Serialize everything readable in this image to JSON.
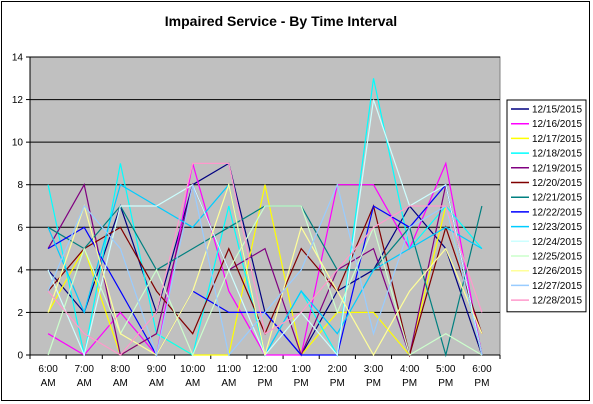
{
  "chart_data": {
    "type": "line",
    "title": "Impaired Service - By Time Interval",
    "xlabel": "",
    "ylabel": "",
    "ylim": [
      0,
      14
    ],
    "yticks": [
      0,
      2,
      4,
      6,
      8,
      10,
      12,
      14
    ],
    "grid": true,
    "legend_position": "right",
    "plot_background": "#c0c0c0",
    "categories": [
      [
        "6:00",
        "AM"
      ],
      [
        "7:00",
        "AM"
      ],
      [
        "8:00",
        "AM"
      ],
      [
        "9:00",
        "AM"
      ],
      [
        "10:00",
        "AM"
      ],
      [
        "11:00",
        "AM"
      ],
      [
        "12:00",
        "PM"
      ],
      [
        "1:00",
        "PM"
      ],
      [
        "2:00",
        "PM"
      ],
      [
        "3:00",
        "PM"
      ],
      [
        "4:00",
        "PM"
      ],
      [
        "5:00",
        "PM"
      ],
      [
        "6:00",
        "PM"
      ]
    ],
    "series": [
      {
        "name": "12/15/2015",
        "color": "#000080",
        "values": [
          4,
          2,
          7,
          2,
          8,
          9,
          2,
          0,
          3,
          4,
          7,
          5,
          0
        ]
      },
      {
        "name": "12/16/2015",
        "color": "#ff00ff",
        "values": [
          1,
          0,
          2,
          0,
          9,
          3,
          0,
          0,
          8,
          8,
          5,
          9,
          0
        ]
      },
      {
        "name": "12/17/2015",
        "color": "#ffff00",
        "values": [
          2,
          5,
          0,
          1,
          0,
          0,
          8,
          0,
          2,
          2,
          0,
          7,
          0
        ]
      },
      {
        "name": "12/18/2015",
        "color": "#00ffff",
        "values": [
          8,
          0,
          9,
          1,
          0,
          7,
          0,
          3,
          0,
          13,
          5,
          7,
          5
        ]
      },
      {
        "name": "12/19/2015",
        "color": "#800080",
        "values": [
          5,
          8,
          0,
          1,
          8,
          4,
          5,
          0,
          4,
          5,
          0,
          8,
          0
        ]
      },
      {
        "name": "12/20/2015",
        "color": "#800000",
        "values": [
          3,
          5,
          6,
          3,
          1,
          5,
          1,
          5,
          3,
          7,
          0,
          6,
          1
        ]
      },
      {
        "name": "12/21/2015",
        "color": "#008080",
        "values": [
          6,
          5,
          7,
          4,
          5,
          6,
          7,
          7,
          4,
          4,
          6,
          0,
          7
        ]
      },
      {
        "name": "12/22/2015",
        "color": "#0000ff",
        "values": [
          5,
          6,
          3,
          0,
          3,
          2,
          2,
          0,
          0,
          7,
          6,
          8,
          0
        ]
      },
      {
        "name": "12/23/2015",
        "color": "#00ccff",
        "values": [
          6,
          2,
          8,
          7,
          6,
          8,
          0,
          3,
          1,
          4,
          5,
          6,
          5
        ]
      },
      {
        "name": "12/24/2015",
        "color": "#ccffff",
        "values": [
          4,
          0,
          7,
          7,
          8,
          4,
          0,
          2,
          0,
          12,
          7,
          8,
          0
        ]
      },
      {
        "name": "12/25/2015",
        "color": "#ccffcc",
        "values": [
          0,
          5,
          1,
          4,
          0,
          4,
          7,
          7,
          2,
          6,
          0,
          1,
          0
        ]
      },
      {
        "name": "12/26/2015",
        "color": "#ffff99",
        "values": [
          2,
          7,
          1,
          0,
          3,
          8,
          0,
          6,
          3,
          0,
          3,
          5,
          1
        ]
      },
      {
        "name": "12/27/2015",
        "color": "#99ccff",
        "values": [
          3,
          7,
          5,
          0,
          8,
          0,
          2,
          4,
          8,
          1,
          6,
          7,
          0
        ]
      },
      {
        "name": "12/28/2015",
        "color": "#ff99cc",
        "values": [
          3,
          1,
          0,
          2,
          9,
          9,
          1,
          2,
          4,
          6,
          7,
          7,
          2
        ]
      }
    ]
  }
}
